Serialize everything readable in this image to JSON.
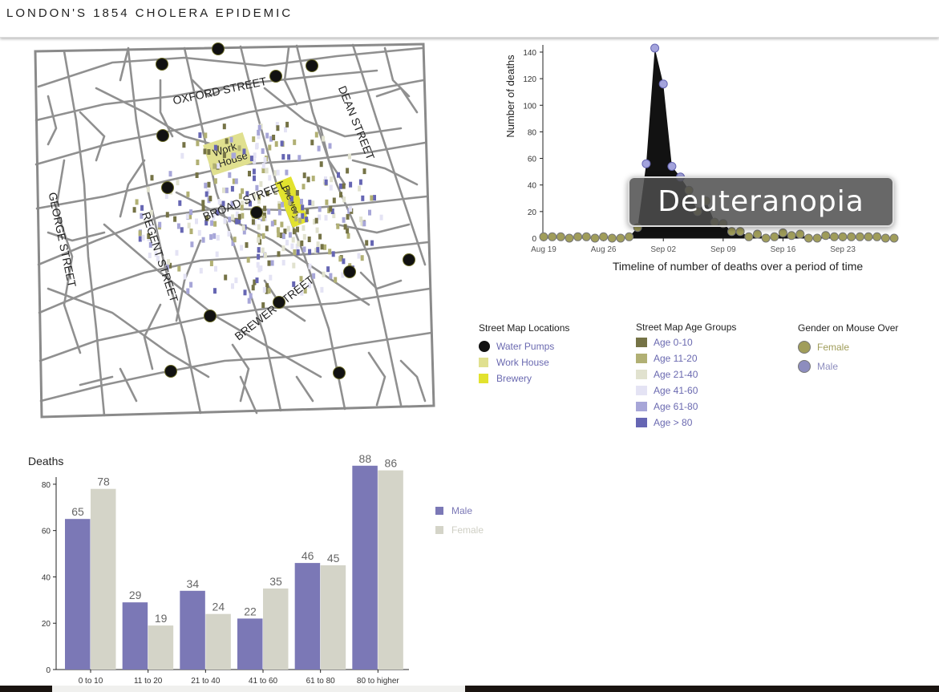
{
  "header": {
    "title": "LONDON'S 1854 CHOLERA EPIDEMIC"
  },
  "map": {
    "street_labels": [
      "OXFORD STREET",
      "DEAN STREET",
      "GEORGE STREET",
      "REGENT STREET",
      "BROAD STREET",
      "BREWER STREET"
    ],
    "workhouse_label_1": "Work",
    "workhouse_label_2": "House",
    "brewery_label": "Brewery",
    "colors": {
      "pump": "#111111",
      "workhouse": "#e0e08f",
      "brewery": "#e2e22e",
      "street": "#909090"
    }
  },
  "timeline": {
    "ylabel": "Number of deaths",
    "xlabel": "Timeline of number of deaths over a period of time",
    "x_ticks": [
      "Aug 19",
      "Aug 26",
      "Sep 02",
      "Sep 09",
      "Sep 16",
      "Sep 23"
    ],
    "y_ticks": [
      "0",
      "20",
      "40",
      "60",
      "80",
      "100",
      "120",
      "140"
    ],
    "ylim": [
      0,
      143
    ]
  },
  "overlay": {
    "label": "Deuteranopia"
  },
  "legends": {
    "locations": {
      "title": "Street Map Locations",
      "items": [
        {
          "label": "Water Pumps",
          "color": "#111111"
        },
        {
          "label": "Work House",
          "color": "#e0e08f"
        },
        {
          "label": "Brewery",
          "color": "#e2e22e"
        }
      ]
    },
    "age_groups": {
      "title": "Street Map Age Groups",
      "items": [
        {
          "label": "Age 0-10",
          "color": "#757346"
        },
        {
          "label": "Age 11-20",
          "color": "#b1b074"
        },
        {
          "label": "Age 21-40",
          "color": "#e1e2cf"
        },
        {
          "label": "Age 41-60",
          "color": "#e4e3f4"
        },
        {
          "label": "Age 61-80",
          "color": "#a7a6d8"
        },
        {
          "label": "Age > 80",
          "color": "#6666b3"
        }
      ]
    },
    "gender": {
      "title": "Gender on Mouse Over",
      "items": [
        {
          "label": "Female",
          "color": "#a09d5a"
        },
        {
          "label": "Male",
          "color": "#8d8dbe"
        }
      ]
    }
  },
  "bar_legend": {
    "items": [
      {
        "label": "Male",
        "color": "#7b78b6"
      },
      {
        "label": "Female",
        "color": "#d4d4c8"
      }
    ]
  },
  "chart_data": [
    {
      "type": "line",
      "x": [
        "Aug 19",
        "Aug 20",
        "Aug 21",
        "Aug 22",
        "Aug 23",
        "Aug 24",
        "Aug 25",
        "Aug 26",
        "Aug 27",
        "Aug 28",
        "Aug 29",
        "Aug 30",
        "Aug 31",
        "Sep 01",
        "Sep 02",
        "Sep 03",
        "Sep 04",
        "Sep 05",
        "Sep 06",
        "Sep 07",
        "Sep 08",
        "Sep 09",
        "Sep 10",
        "Sep 11",
        "Sep 12",
        "Sep 13",
        "Sep 14",
        "Sep 15",
        "Sep 16",
        "Sep 17",
        "Sep 18",
        "Sep 19",
        "Sep 20",
        "Sep 21",
        "Sep 22",
        "Sep 23",
        "Sep 24",
        "Sep 25",
        "Sep 26",
        "Sep 27",
        "Sep 28",
        "Sep 29"
      ],
      "values": [
        1,
        1,
        1,
        0,
        1,
        1,
        0,
        1,
        0,
        0,
        1,
        8,
        56,
        143,
        116,
        54,
        46,
        36,
        20,
        28,
        12,
        11,
        5,
        5,
        1,
        3,
        0,
        1,
        4,
        2,
        3,
        0,
        0,
        2,
        1,
        1,
        1,
        1,
        1,
        1,
        0,
        0
      ],
      "ylabel": "Number of deaths",
      "xlabel": "Timeline of number of deaths over a period of time",
      "ylim": [
        0,
        143
      ]
    },
    {
      "type": "bar",
      "title": "Deaths",
      "categories": [
        "0 to 10",
        "11 to 20",
        "21 to 40",
        "41 to 60",
        "61 to 80",
        "80 to higher"
      ],
      "series": [
        {
          "name": "Male",
          "values": [
            65,
            29,
            34,
            22,
            46,
            88
          ]
        },
        {
          "name": "Female",
          "values": [
            78,
            19,
            24,
            35,
            45,
            86
          ]
        }
      ],
      "y_ticks": [
        "0",
        "20",
        "40",
        "60",
        "80"
      ],
      "ylim": [
        0,
        90
      ]
    }
  ]
}
